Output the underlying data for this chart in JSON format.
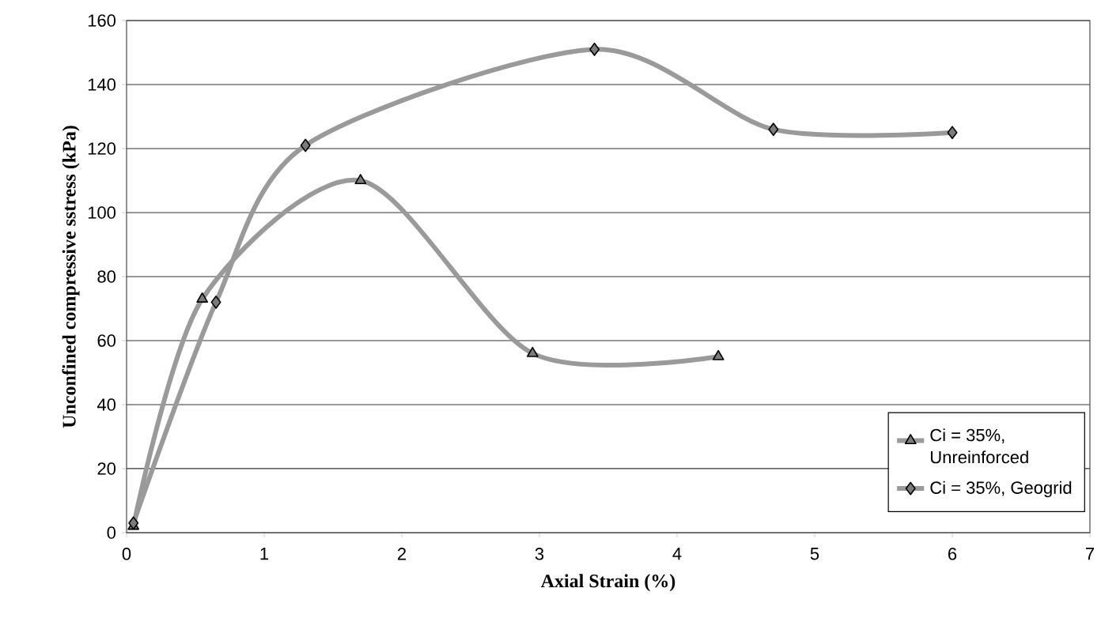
{
  "chart_data": {
    "type": "line",
    "xlabel": "Axial Strain (%)",
    "ylabel": "Unconfined compressive sstress (kPa)",
    "xlim": [
      0,
      7
    ],
    "xticks": [
      0,
      1,
      2,
      3,
      4,
      5,
      6,
      7
    ],
    "ylim": [
      0,
      160
    ],
    "yticks": [
      0,
      20,
      40,
      60,
      80,
      100,
      120,
      140,
      160
    ],
    "grid": "y",
    "legend": "bottom right",
    "line_style": "solid",
    "series": [
      {
        "name": "Ci = 35%, Unreinforced",
        "color": "#9a9a9a",
        "marker": "triangle",
        "x": [
          0.05,
          0.55,
          1.7,
          2.95,
          4.3
        ],
        "values": [
          2,
          73,
          110,
          56,
          55
        ]
      },
      {
        "name": "Ci = 35%, Geogrid",
        "color": "#9a9a9a",
        "marker": "diamond",
        "x": [
          0.05,
          0.65,
          1.3,
          3.4,
          4.7,
          6.0
        ],
        "values": [
          3,
          72,
          121,
          151,
          126,
          125
        ]
      }
    ]
  }
}
